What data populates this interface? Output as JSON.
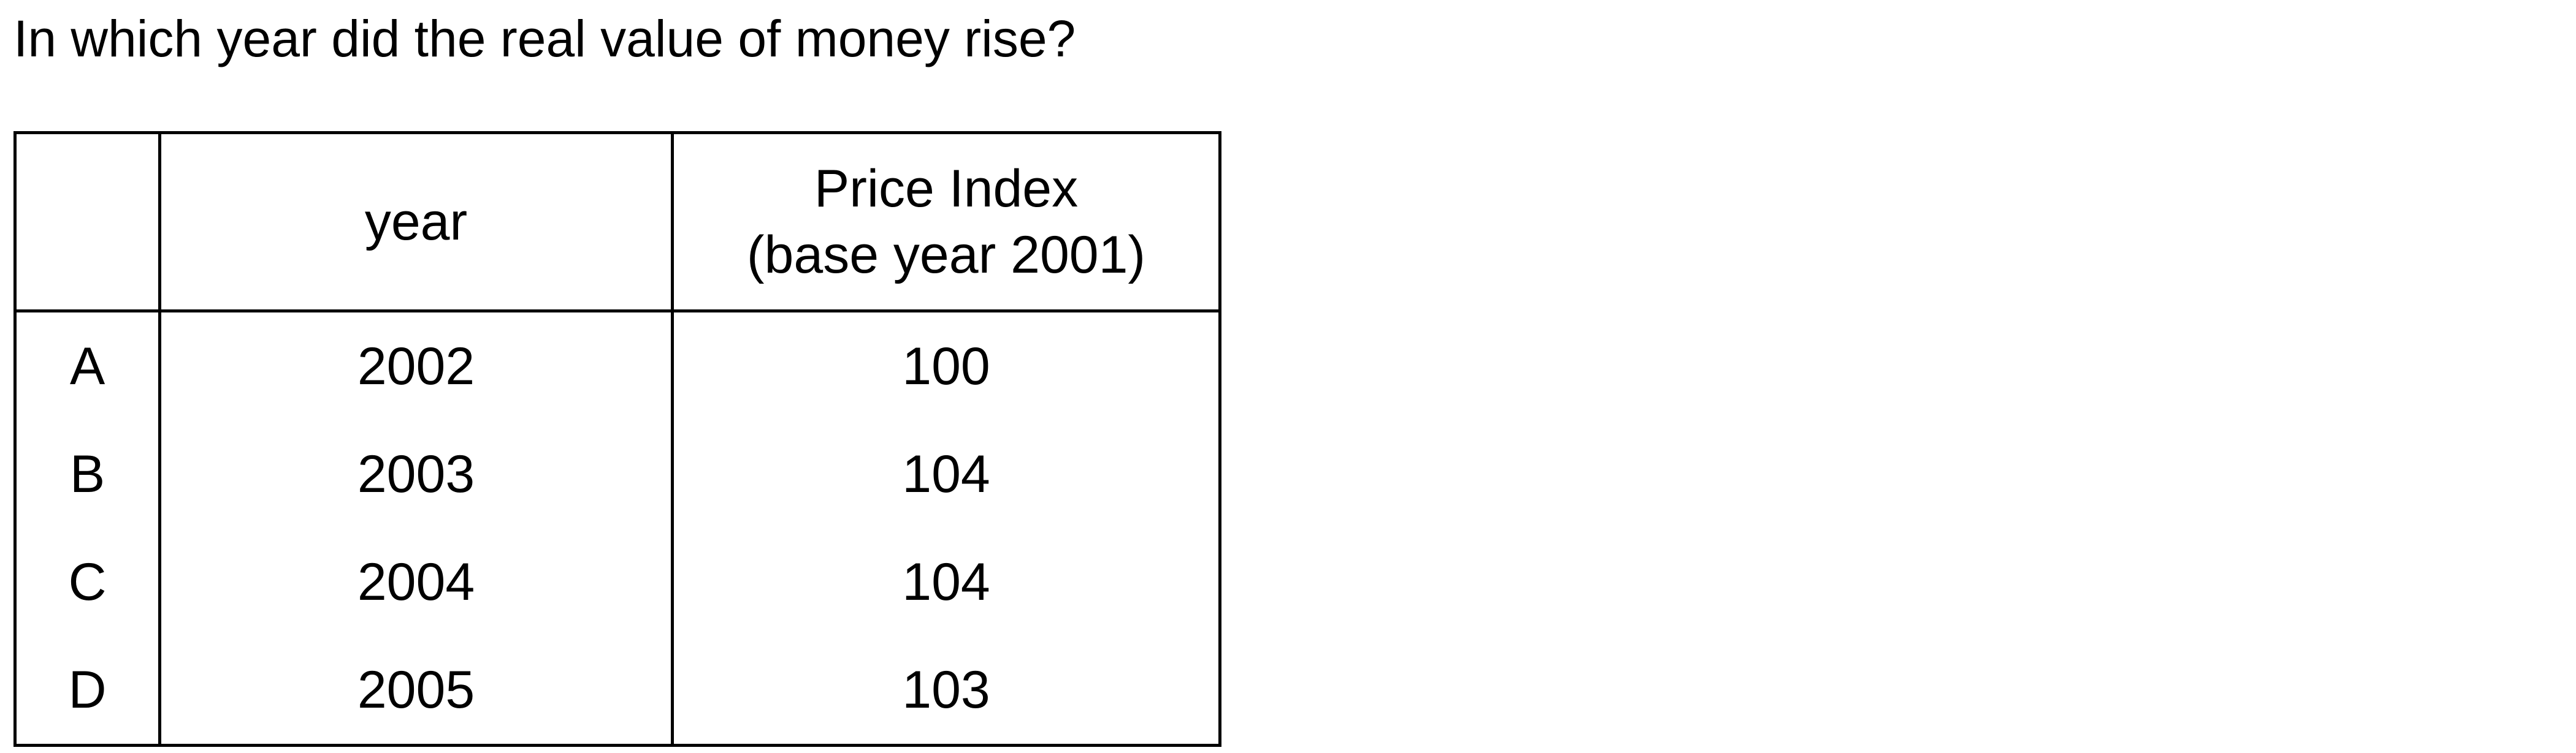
{
  "question": "In which year did the real value of money rise?",
  "table": {
    "headers": {
      "letter": "",
      "year": "year",
      "price_line1": "Price Index",
      "price_line2": "(base year 2001)"
    },
    "rows": [
      {
        "letter": "A",
        "year": "2002",
        "index": "100"
      },
      {
        "letter": "B",
        "year": "2003",
        "index": "104"
      },
      {
        "letter": "C",
        "year": "2004",
        "index": "104"
      },
      {
        "letter": "D",
        "year": "2005",
        "index": "103"
      }
    ]
  }
}
